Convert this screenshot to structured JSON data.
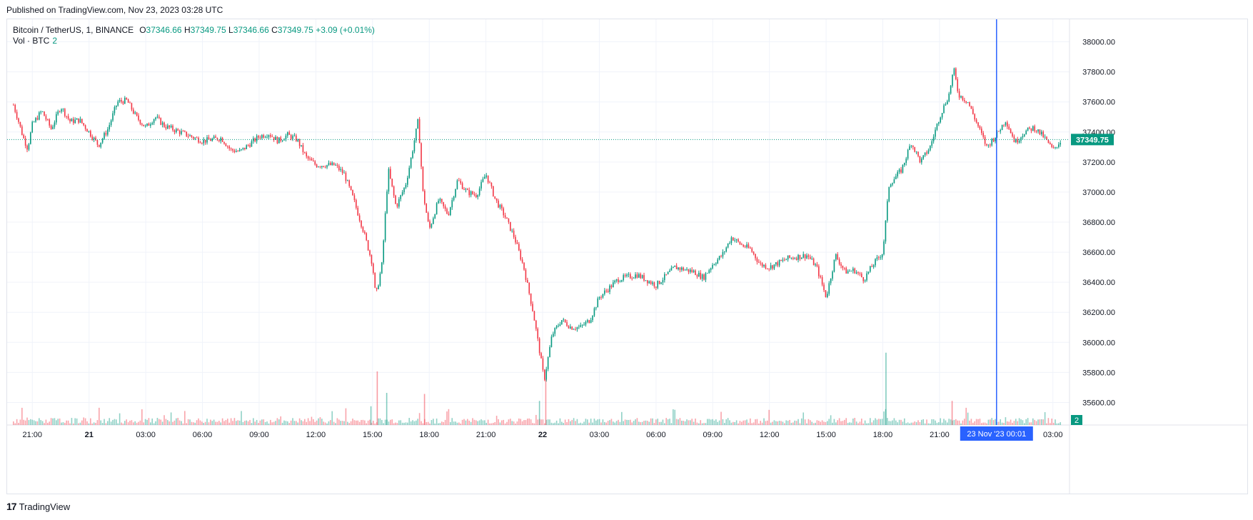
{
  "published": "Published on TradingView.com, Nov 23, 2023 03:28 UTC",
  "legend": {
    "symbol": "Bitcoin / TetherUS, 1, BINANCE",
    "o_label": "O",
    "o": "37346.66",
    "h_label": "H",
    "h": "37349.75",
    "l_label": "L",
    "l": "37346.66",
    "c_label": "C",
    "c": "37349.75",
    "change": "+3.09 (+0.01%)"
  },
  "vol_legend": {
    "label": "Vol · BTC",
    "value": "2"
  },
  "footer": {
    "logo_mark": "17",
    "logo_text": "TradingView"
  },
  "colors": {
    "up": "#089981",
    "down": "#f23645",
    "crosshair": "#2962ff",
    "grid": "#f0f3fa"
  },
  "chart_data": {
    "type": "candlestick",
    "symbol": "Bitcoin / TetherUS",
    "interval": "1",
    "exchange": "BINANCE",
    "ylim": [
      35450,
      38150
    ],
    "y_ticks": [
      "38000.00",
      "37800.00",
      "37600.00",
      "37400.00",
      "37200.00",
      "37000.00",
      "36800.00",
      "36600.00",
      "36400.00",
      "36200.00",
      "36000.00",
      "35800.00",
      "35600.00"
    ],
    "x_ticks": [
      "21:00",
      "21",
      "03:00",
      "06:00",
      "09:00",
      "12:00",
      "15:00",
      "18:00",
      "21:00",
      "22",
      "03:00",
      "06:00",
      "09:00",
      "12:00",
      "15:00",
      "18:00",
      "21:00",
      "03:00"
    ],
    "x_ticks_bold": [
      "21",
      "22"
    ],
    "last_price": "37349.75",
    "last_volume": "2",
    "crosshair_label": "23 Nov '23   00:01",
    "price_path": [
      [
        "2023-11-20 20:00",
        37580
      ],
      [
        "2023-11-20 20:15",
        37480
      ],
      [
        "2023-11-20 20:30",
        37370
      ],
      [
        "2023-11-20 20:45",
        37290
      ],
      [
        "2023-11-20 21:00",
        37450
      ],
      [
        "2023-11-20 21:30",
        37540
      ],
      [
        "2023-11-20 22:00",
        37420
      ],
      [
        "2023-11-20 22:30",
        37570
      ],
      [
        "2023-11-20 23:00",
        37470
      ],
      [
        "2023-11-20 23:30",
        37480
      ],
      [
        "2023-11-21 00:00",
        37400
      ],
      [
        "2023-11-21 00:30",
        37310
      ],
      [
        "2023-11-21 01:00",
        37420
      ],
      [
        "2023-11-21 01:30",
        37600
      ],
      [
        "2023-11-21 02:00",
        37610
      ],
      [
        "2023-11-21 02:30",
        37500
      ],
      [
        "2023-11-21 03:00",
        37430
      ],
      [
        "2023-11-21 03:30",
        37500
      ],
      [
        "2023-11-21 04:00",
        37440
      ],
      [
        "2023-11-21 05:00",
        37390
      ],
      [
        "2023-11-21 06:00",
        37340
      ],
      [
        "2023-11-21 07:00",
        37360
      ],
      [
        "2023-11-21 07:30",
        37280
      ],
      [
        "2023-11-21 08:00",
        37270
      ],
      [
        "2023-11-21 09:00",
        37370
      ],
      [
        "2023-11-21 09:30",
        37390
      ],
      [
        "2023-11-21 10:00",
        37340
      ],
      [
        "2023-11-21 10:30",
        37380
      ],
      [
        "2023-11-21 11:00",
        37350
      ],
      [
        "2023-11-21 11:30",
        37230
      ],
      [
        "2023-11-21 12:00",
        37180
      ],
      [
        "2023-11-21 13:00",
        37180
      ],
      [
        "2023-11-21 13:30",
        37120
      ],
      [
        "2023-11-21 14:00",
        36950
      ],
      [
        "2023-11-21 14:30",
        36750
      ],
      [
        "2023-11-21 15:00",
        36520
      ],
      [
        "2023-11-21 15:10",
        36300
      ],
      [
        "2023-11-21 15:30",
        36520
      ],
      [
        "2023-11-21 15:50",
        37150
      ],
      [
        "2023-11-21 16:15",
        36900
      ],
      [
        "2023-11-21 16:45",
        37050
      ],
      [
        "2023-11-21 17:00",
        37200
      ],
      [
        "2023-11-21 17:25",
        37480
      ],
      [
        "2023-11-21 17:40",
        37000
      ],
      [
        "2023-11-21 18:00",
        36750
      ],
      [
        "2023-11-21 18:30",
        36950
      ],
      [
        "2023-11-21 19:00",
        36850
      ],
      [
        "2023-11-21 19:30",
        37080
      ],
      [
        "2023-11-21 20:00",
        37000
      ],
      [
        "2023-11-21 20:30",
        36980
      ],
      [
        "2023-11-21 21:00",
        37120
      ],
      [
        "2023-11-21 21:30",
        36950
      ],
      [
        "2023-11-21 22:00",
        36840
      ],
      [
        "2023-11-21 22:30",
        36700
      ],
      [
        "2023-11-21 23:00",
        36500
      ],
      [
        "2023-11-21 23:30",
        36200
      ],
      [
        "2023-11-21 23:55",
        35880
      ],
      [
        "2023-11-22 00:05",
        35750
      ],
      [
        "2023-11-22 00:30",
        36050
      ],
      [
        "2023-11-22 01:00",
        36150
      ],
      [
        "2023-11-22 01:30",
        36100
      ],
      [
        "2023-11-22 02:00",
        36100
      ],
      [
        "2023-11-22 02:30",
        36150
      ],
      [
        "2023-11-22 03:00",
        36300
      ],
      [
        "2023-11-22 04:00",
        36420
      ],
      [
        "2023-11-22 05:00",
        36450
      ],
      [
        "2023-11-22 06:00",
        36380
      ],
      [
        "2023-11-22 07:00",
        36500
      ],
      [
        "2023-11-22 08:00",
        36470
      ],
      [
        "2023-11-22 08:30",
        36430
      ],
      [
        "2023-11-22 09:00",
        36520
      ],
      [
        "2023-11-22 09:30",
        36580
      ],
      [
        "2023-11-22 10:00",
        36700
      ],
      [
        "2023-11-22 10:30",
        36650
      ],
      [
        "2023-11-22 11:00",
        36620
      ],
      [
        "2023-11-22 11:30",
        36520
      ],
      [
        "2023-11-22 12:00",
        36500
      ],
      [
        "2023-11-22 13:00",
        36560
      ],
      [
        "2023-11-22 14:00",
        36580
      ],
      [
        "2023-11-22 14:30",
        36500
      ],
      [
        "2023-11-22 15:00",
        36300
      ],
      [
        "2023-11-22 15:30",
        36580
      ],
      [
        "2023-11-22 16:00",
        36470
      ],
      [
        "2023-11-22 16:30",
        36480
      ],
      [
        "2023-11-22 17:00",
        36420
      ],
      [
        "2023-11-22 17:30",
        36520
      ],
      [
        "2023-11-22 18:00",
        36600
      ],
      [
        "2023-11-22 18:20",
        37050
      ],
      [
        "2023-11-22 19:00",
        37150
      ],
      [
        "2023-11-22 19:30",
        37330
      ],
      [
        "2023-11-22 20:00",
        37200
      ],
      [
        "2023-11-22 20:30",
        37300
      ],
      [
        "2023-11-22 21:00",
        37500
      ],
      [
        "2023-11-22 21:30",
        37650
      ],
      [
        "2023-11-22 21:45",
        37820
      ],
      [
        "2023-11-22 22:00",
        37650
      ],
      [
        "2023-11-22 22:30",
        37600
      ],
      [
        "2023-11-22 23:00",
        37450
      ],
      [
        "2023-11-22 23:30",
        37300
      ],
      [
        "2023-11-23 00:00",
        37380
      ],
      [
        "2023-11-23 00:30",
        37480
      ],
      [
        "2023-11-23 01:00",
        37330
      ],
      [
        "2023-11-23 01:30",
        37400
      ],
      [
        "2023-11-23 02:00",
        37430
      ],
      [
        "2023-11-23 02:30",
        37370
      ],
      [
        "2023-11-23 03:00",
        37280
      ],
      [
        "2023-11-23 03:28",
        37349.75
      ]
    ],
    "volume_spikes": [
      [
        "2023-11-21 15:15",
        1.0
      ],
      [
        "2023-11-21 15:45",
        0.6
      ],
      [
        "2023-11-21 17:45",
        0.58
      ],
      [
        "2023-11-21 23:50",
        0.45
      ],
      [
        "2023-11-22 00:10",
        0.85
      ],
      [
        "2023-11-22 18:10",
        1.35
      ],
      [
        "2023-11-22 21:40",
        0.45
      ],
      [
        "2023-11-21 14:55",
        0.35
      ]
    ]
  }
}
